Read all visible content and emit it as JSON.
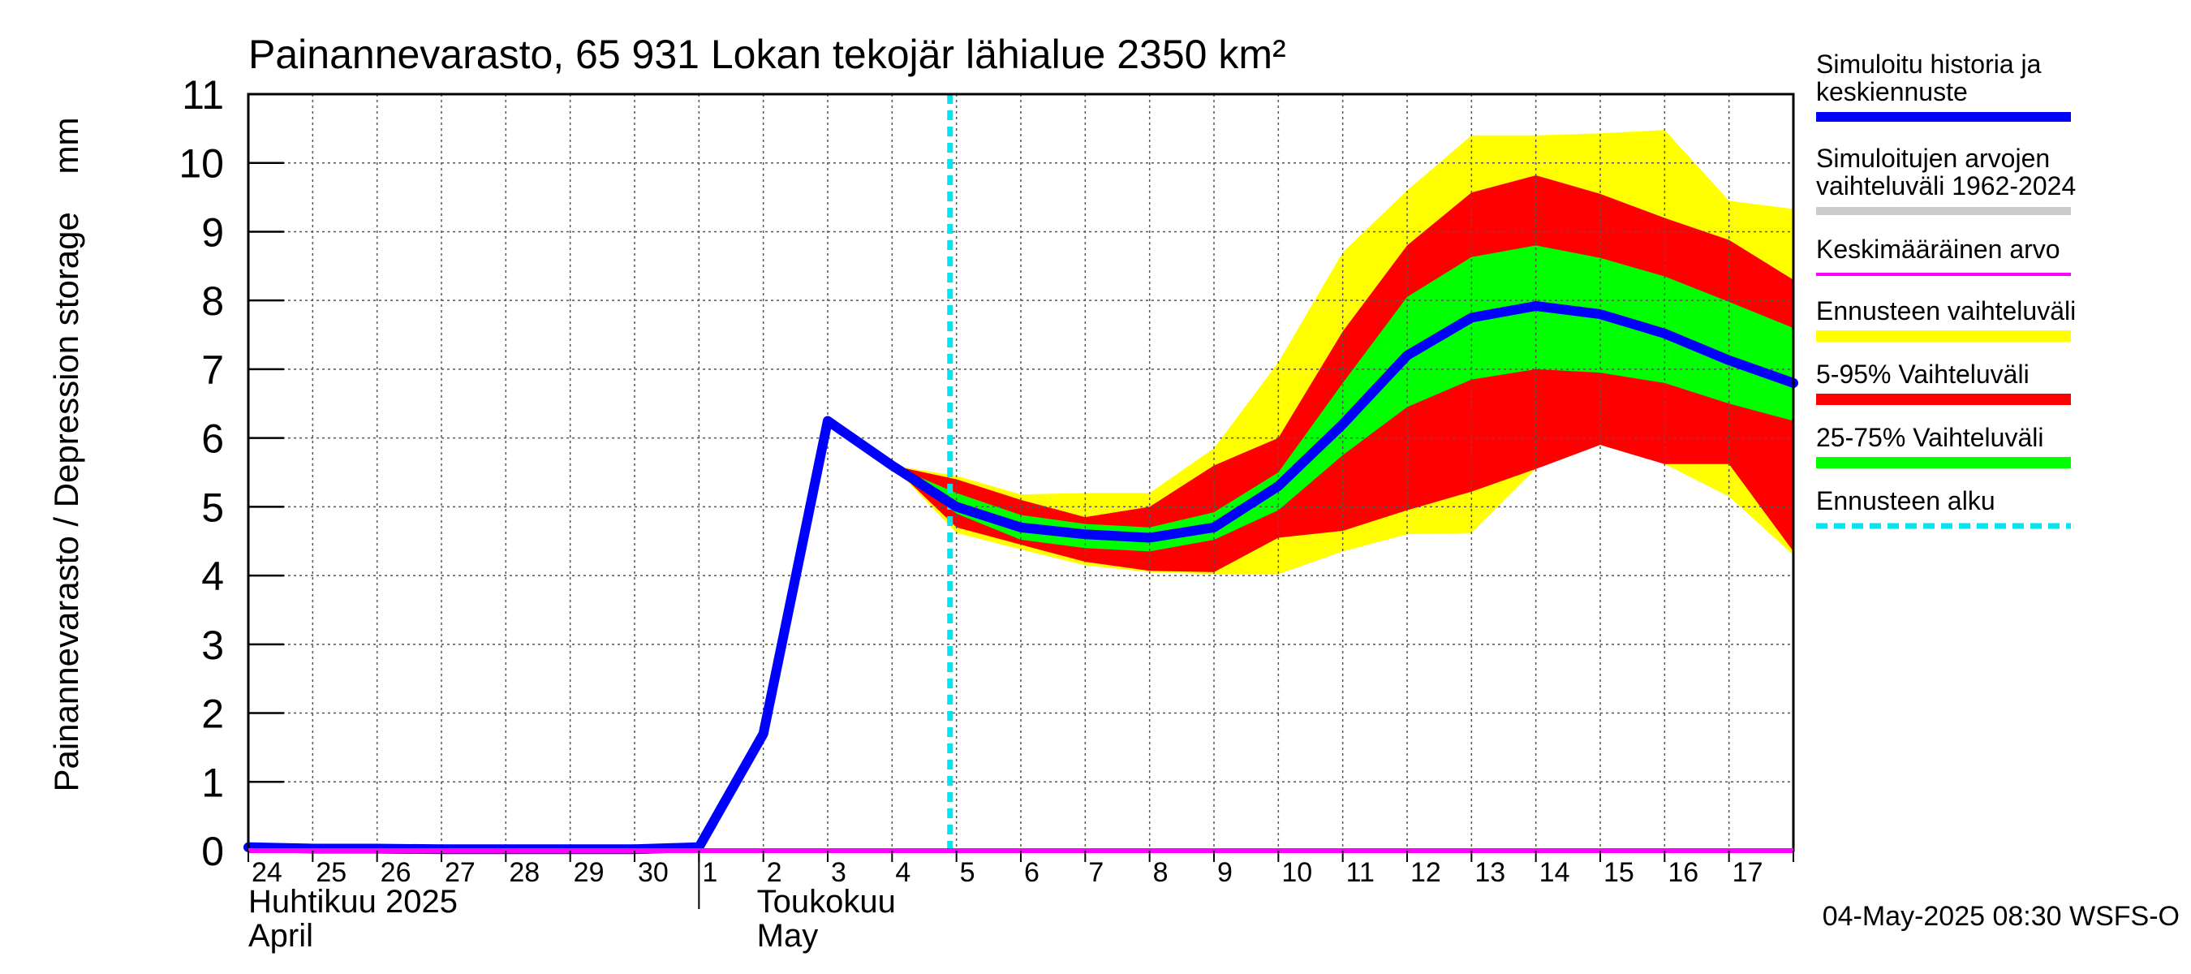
{
  "chart_data": {
    "type": "area",
    "title": "Painannevarasto, 65 931 Lokan tekojär lähialue 2350 km²",
    "ylabel": "Painannevarasto / Depression storage    mm",
    "ylim": [
      0,
      11
    ],
    "yticks": [
      "0",
      "1",
      "2",
      "3",
      "4",
      "5",
      "6",
      "7",
      "8",
      "9",
      "10",
      "11"
    ],
    "x_day_labels": [
      "24",
      "25",
      "26",
      "27",
      "28",
      "29",
      "30",
      "1",
      "2",
      "3",
      "4",
      "5",
      "6",
      "7",
      "8",
      "9",
      "10",
      "11",
      "12",
      "13",
      "14",
      "15",
      "16",
      "17"
    ],
    "month_labels": [
      {
        "fi": "Huhtikuu  2025",
        "en": "April"
      },
      {
        "fi": "Toukokuu",
        "en": "May"
      }
    ],
    "timestamp": "04-May-2025 08:30 WSFS-O",
    "forecast_start_day": 10.9,
    "series": [
      {
        "name": "Simuloitu historia ja keskiennuste",
        "x": [
          0,
          1,
          2,
          3,
          4,
          5,
          6,
          7,
          8,
          9,
          10,
          11,
          12,
          13,
          14,
          15,
          16,
          17,
          18,
          19,
          20,
          21,
          22,
          23,
          24
        ],
        "values": [
          0.05,
          0.03,
          0.03,
          0.02,
          0.02,
          0.02,
          0.02,
          0.05,
          1.7,
          6.25,
          5.6,
          5.0,
          4.7,
          4.6,
          4.55,
          4.7,
          5.3,
          6.2,
          7.2,
          7.75,
          7.92,
          7.8,
          7.52,
          7.13,
          6.8
        ]
      },
      {
        "name": "Keskimääräinen arvo",
        "values": [
          0.0
        ]
      }
    ],
    "bands": [
      {
        "name": "Ennusteen vaihteluväli",
        "color": "#ffff00",
        "x": [
          10,
          11,
          12,
          13,
          14,
          15,
          16,
          17,
          18,
          19,
          20,
          21,
          22,
          23,
          24
        ],
        "lower": [
          5.6,
          4.62,
          4.38,
          4.15,
          4.05,
          4.02,
          4.02,
          4.35,
          4.6,
          4.62,
          5.55,
          5.95,
          5.62,
          5.15,
          4.3
        ],
        "upper": [
          5.6,
          5.45,
          5.18,
          5.2,
          5.2,
          5.85,
          7.1,
          8.7,
          9.6,
          10.4,
          10.4,
          10.43,
          10.48,
          9.45,
          9.33
        ]
      },
      {
        "name": "5-95% Vaihteluväli",
        "color": "#ff0000",
        "x": [
          10,
          11,
          12,
          13,
          14,
          15,
          16,
          17,
          18,
          19,
          20,
          21,
          22,
          23,
          24
        ],
        "lower": [
          5.6,
          4.7,
          4.45,
          4.2,
          4.07,
          4.05,
          4.55,
          4.65,
          4.95,
          5.22,
          5.55,
          5.9,
          5.62,
          5.62,
          4.35
        ],
        "upper": [
          5.6,
          5.4,
          5.1,
          4.85,
          5.0,
          5.6,
          6.0,
          7.55,
          8.8,
          9.57,
          9.82,
          9.55,
          9.2,
          8.88,
          8.3
        ]
      },
      {
        "name": "25-75% Vaihteluväli",
        "color": "#00ff00",
        "x": [
          10,
          11,
          12,
          13,
          14,
          15,
          16,
          17,
          18,
          19,
          20,
          21,
          22,
          23,
          24
        ],
        "lower": [
          5.6,
          4.9,
          4.52,
          4.4,
          4.35,
          4.52,
          4.95,
          5.75,
          6.45,
          6.85,
          7.0,
          6.95,
          6.8,
          6.5,
          6.25
        ],
        "upper": [
          5.6,
          5.2,
          4.88,
          4.75,
          4.7,
          4.92,
          5.5,
          6.8,
          8.05,
          8.63,
          8.8,
          8.62,
          8.35,
          7.98,
          7.6
        ]
      }
    ],
    "legend": {
      "placement": "right",
      "entries": [
        {
          "lines": [
            "Simuloitu historia ja",
            "keskiennuste"
          ],
          "color": "#0000ff",
          "style": "thick"
        },
        {
          "lines": [
            "Simuloitujen arvojen",
            "vaihteluväli 1962-2024"
          ],
          "color": "#cccccc",
          "style": "medium"
        },
        {
          "lines": [
            "Keskimääräinen arvo"
          ],
          "color": "#ff00ff",
          "style": "thin"
        },
        {
          "lines": [
            "Ennusteen vaihteluväli"
          ],
          "color": "#ffff00",
          "style": "band"
        },
        {
          "lines": [
            "5-95% Vaihteluväli"
          ],
          "color": "#ff0000",
          "style": "band"
        },
        {
          "lines": [
            "25-75% Vaihteluväli"
          ],
          "color": "#00ff00",
          "style": "band"
        },
        {
          "lines": [
            "Ennusteen alku"
          ],
          "color": "#00e5ee",
          "style": "dashed"
        }
      ]
    },
    "grid": true
  }
}
